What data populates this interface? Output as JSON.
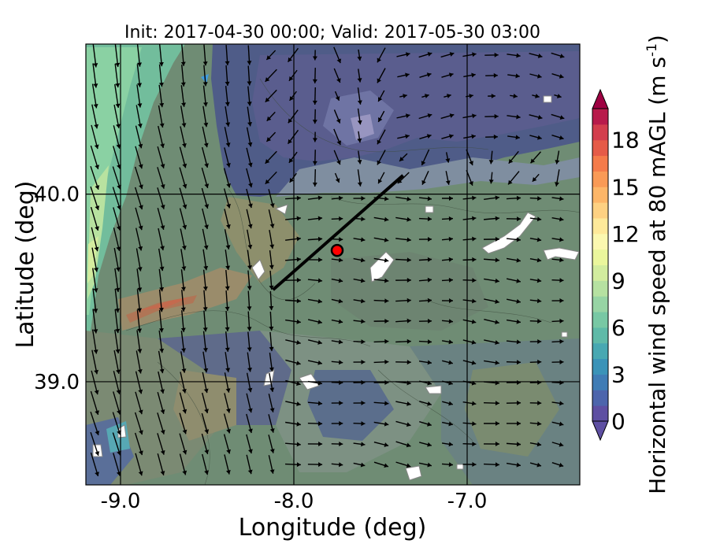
{
  "chart_data": {
    "type": "map",
    "title": "Init: 2017-04-30 00:00; Valid: 2017-05-30 03:00",
    "xlabel": "Longitude (deg)",
    "ylabel": "Latitude (deg)",
    "xlim": [
      -9.2,
      -6.35
    ],
    "ylim": [
      38.45,
      40.8
    ],
    "xticks": [
      {
        "value": -9.0,
        "label": "-9.0"
      },
      {
        "value": -8.0,
        "label": "-8.0"
      },
      {
        "value": -7.0,
        "label": "-7.0"
      }
    ],
    "yticks": [
      {
        "value": 40.0,
        "label": "40.0"
      },
      {
        "value": 39.0,
        "label": "39.0"
      }
    ],
    "grid": true,
    "field": "Horizontal wind speed at 80 mAGL",
    "colorbar": {
      "label": "Horizontal wind speed at 80 mAGL (m s",
      "label_exponent": "-1",
      "label_close": ")",
      "range": [
        0,
        20
      ],
      "extend": "both",
      "ticks": [
        {
          "value": 0,
          "label": "0"
        },
        {
          "value": 3,
          "label": "3"
        },
        {
          "value": 6,
          "label": "6"
        },
        {
          "value": 9,
          "label": "9"
        },
        {
          "value": 12,
          "label": "12"
        },
        {
          "value": 15,
          "label": "15"
        },
        {
          "value": 18,
          "label": "18"
        }
      ],
      "colors": [
        "#5e4fa2",
        "#4d65ac",
        "#3f7cb5",
        "#3a93b8",
        "#48a8b2",
        "#5fbaa8",
        "#78c8a4",
        "#97d4a4",
        "#b6e1a1",
        "#d2ec9e",
        "#eaf69c",
        "#fbf8b0",
        "#fee99a",
        "#fed182",
        "#fdb668",
        "#f99a56",
        "#f47b4a",
        "#e55b48",
        "#d33e4d",
        "#b81b4b"
      ],
      "under_color": "#5e4fa2",
      "over_color": "#9e0142"
    },
    "cross_section_line": {
      "start": [
        -8.12,
        39.49
      ],
      "end": [
        -7.37,
        40.1
      ]
    },
    "marker": {
      "lon": -7.75,
      "lat": 39.7,
      "color": "#ff0000"
    }
  }
}
